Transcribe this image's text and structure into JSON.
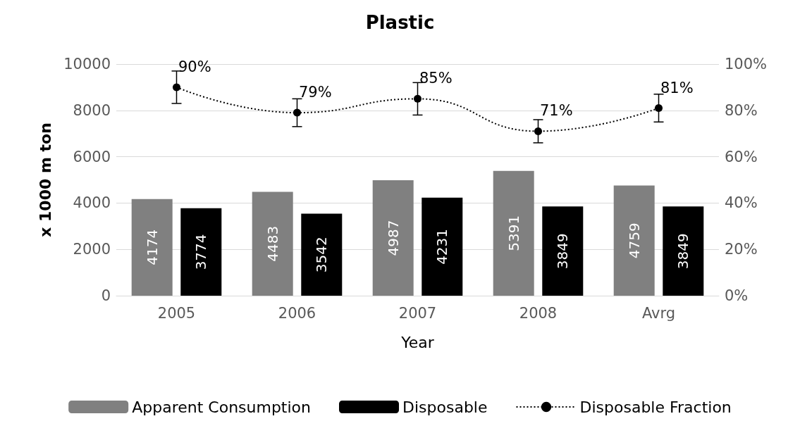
{
  "chart_data": {
    "type": "bar",
    "title": "Plastic",
    "xlabel": "Year",
    "ylabel": "x 1000 m ton",
    "categories": [
      "2005",
      "2006",
      "2007",
      "2008",
      "Avrg"
    ],
    "series": [
      {
        "name": "Apparent Consumption",
        "color": "#808080",
        "values": [
          4174,
          4483,
          4987,
          5391,
          4759
        ],
        "value_labels": [
          "4174",
          "4483",
          "4987",
          "5391",
          "4759"
        ]
      },
      {
        "name": "Disposable",
        "color": "#000000",
        "values": [
          3774,
          3542,
          4231,
          3849,
          3849
        ],
        "value_labels": [
          "3774",
          "3542",
          "4231",
          "3849",
          "3849"
        ]
      },
      {
        "name": "Disposable Fraction",
        "type": "line",
        "axis": "y2",
        "color": "#000000",
        "marker": "circle",
        "line_style": "dotted",
        "values": [
          90,
          79,
          85,
          71,
          81
        ],
        "errors": [
          7,
          6,
          7,
          5,
          6
        ],
        "value_labels": [
          "90%",
          "79%",
          "85%",
          "71%",
          "81%"
        ]
      }
    ],
    "ylim": [
      0,
      10000
    ],
    "yticks": [
      0,
      2000,
      4000,
      6000,
      8000,
      10000
    ],
    "y2lim": [
      0,
      100
    ],
    "y2ticks": [
      {
        "value": 0,
        "label": "0%"
      },
      {
        "value": 20,
        "label": "20%"
      },
      {
        "value": 40,
        "label": "40%"
      },
      {
        "value": 60,
        "label": "60%"
      },
      {
        "value": 80,
        "label": "80%"
      },
      {
        "value": 100,
        "label": "100%"
      }
    ],
    "grid": "y",
    "legend": "bottom"
  }
}
